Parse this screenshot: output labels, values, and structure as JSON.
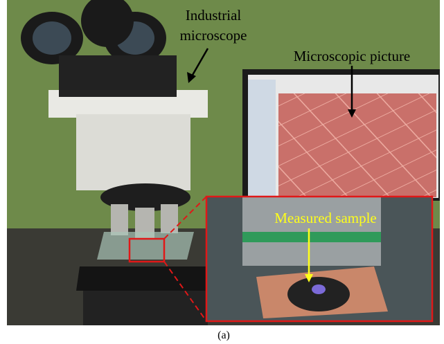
{
  "labels": {
    "industrial_microscope": [
      "Industrial",
      "microscope"
    ],
    "microscopic_picture": "Microscopic picture",
    "measured_sample": "Measured sample",
    "caption": "(a)"
  }
}
